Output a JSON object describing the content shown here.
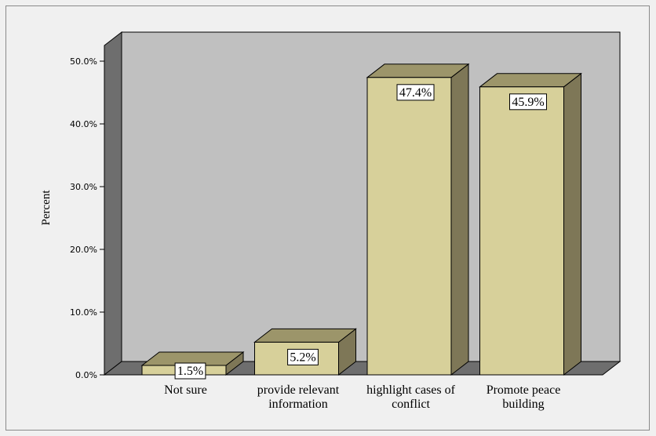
{
  "chart_data": {
    "type": "bar",
    "title": "",
    "xlabel": "",
    "ylabel": "Percent",
    "ylim": [
      0,
      50
    ],
    "yticks": [
      "0.0%",
      "10.0%",
      "20.0%",
      "30.0%",
      "40.0%",
      "50.0%"
    ],
    "categories": [
      [
        "Not sure"
      ],
      [
        "provide relevant",
        "information"
      ],
      [
        "highlight cases of",
        "conflict"
      ],
      [
        "Promote peace",
        "building"
      ]
    ],
    "values": [
      1.5,
      5.2,
      47.4,
      45.9
    ],
    "data_labels": [
      "1.5%",
      "5.2%",
      "47.4%",
      "45.9%"
    ],
    "style": "3d",
    "grid": false,
    "colors": {
      "bar_front": "#d7d09a",
      "bar_top": "#9c956a",
      "bar_side": "#7e7757",
      "plot_back": "#c0c0c0",
      "wall_side": "#6e6e6e",
      "floor": "#6e6e6e",
      "outline": "#000000",
      "label_bg": "#ffffff"
    }
  }
}
